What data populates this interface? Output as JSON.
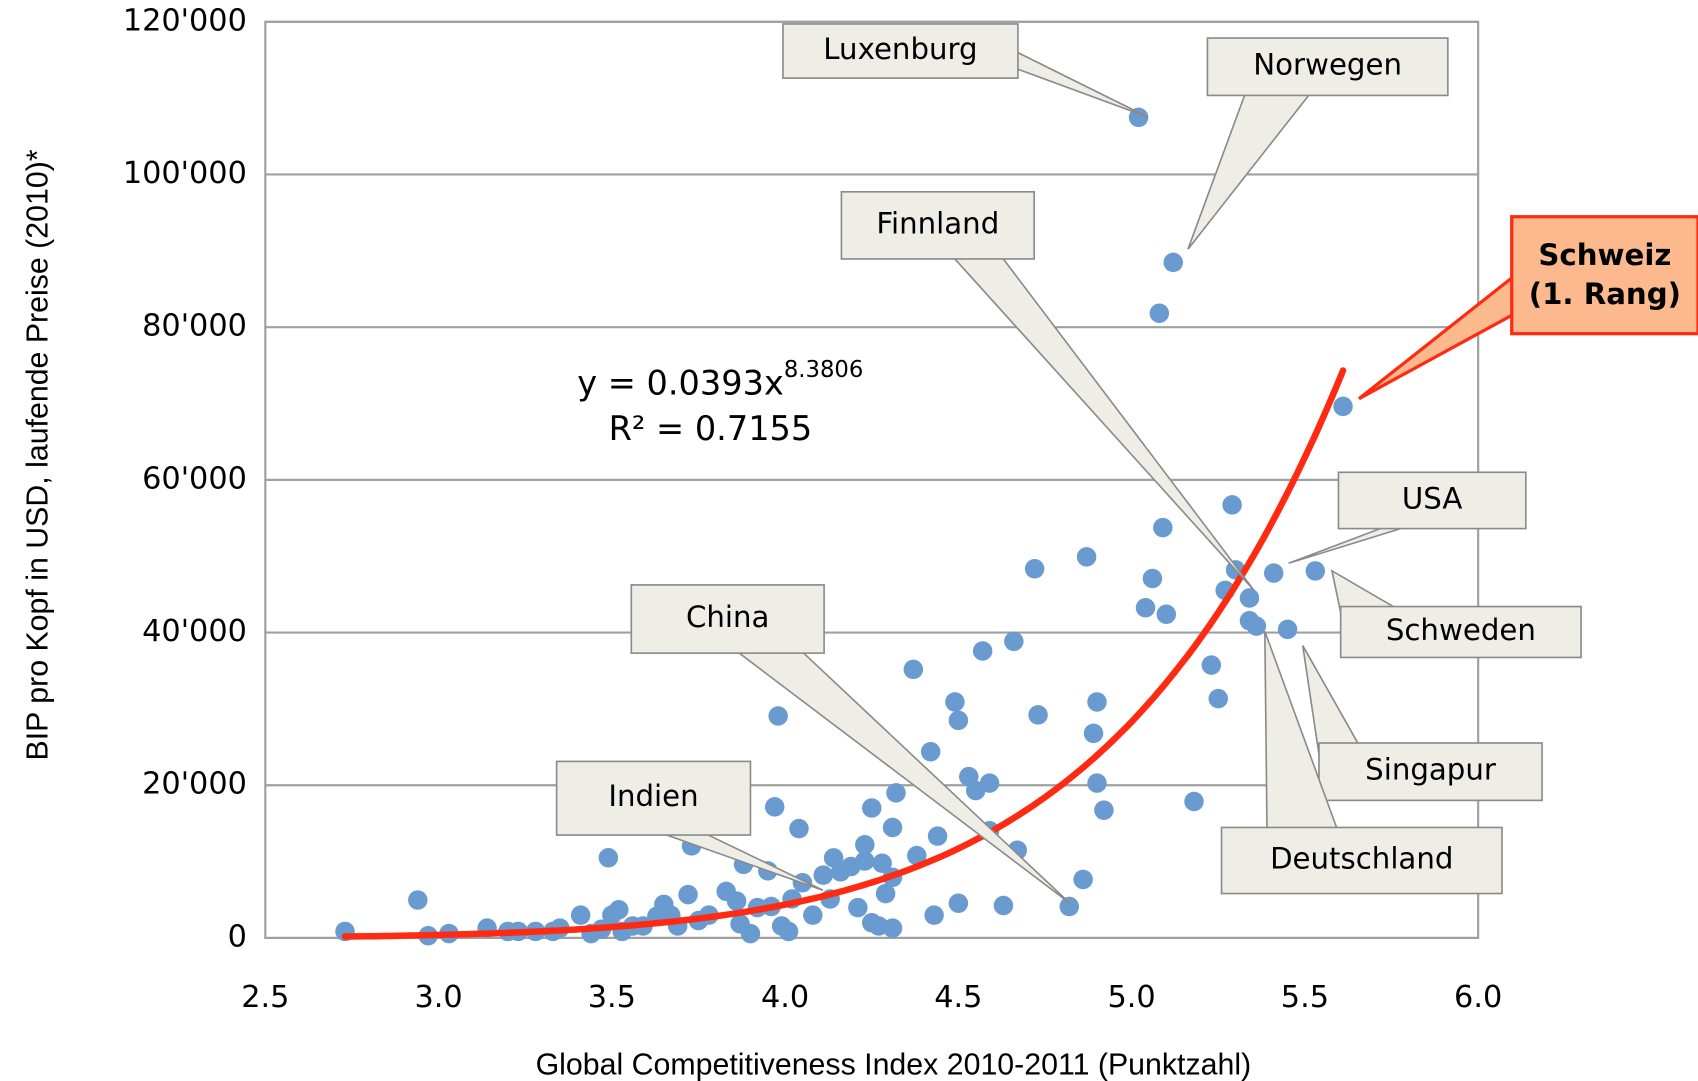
{
  "chart_data": {
    "type": "scatter",
    "x_label": "Global Competitiveness Index 2010-2011 (Punktzahl)",
    "y_label": "BIP pro Kopf in USD, laufende Preise (2010)*",
    "color": "#6a9bd0",
    "x": [
      2.73,
      2.94,
      2.97,
      3.03,
      3.14,
      3.2,
      3.23,
      3.28,
      3.33,
      3.35,
      3.41,
      3.44,
      3.47,
      3.49,
      3.5,
      3.52,
      3.53,
      3.56,
      3.59,
      3.63,
      3.65,
      3.67,
      3.69,
      3.72,
      3.73,
      3.75,
      3.78,
      3.83,
      3.86,
      3.87,
      3.88,
      3.9,
      3.92,
      3.95,
      3.96,
      3.97,
      3.98,
      3.99,
      4.01,
      4.02,
      4.04,
      4.05,
      4.08,
      4.11,
      4.13,
      4.14,
      4.16,
      4.19,
      4.21,
      4.23,
      4.23,
      4.25,
      4.25,
      4.27,
      4.28,
      4.29,
      4.31,
      4.31,
      4.31,
      4.32,
      4.37,
      4.38,
      4.42,
      4.43,
      4.44,
      4.49,
      4.5,
      4.5,
      4.53,
      4.55,
      4.57,
      4.59,
      4.59,
      4.63,
      4.66,
      4.67,
      4.73,
      4.72,
      4.82,
      4.86,
      4.87,
      4.89,
      4.9,
      4.9,
      4.92,
      5.02,
      5.04,
      5.06,
      5.08,
      5.09,
      5.1,
      5.12,
      5.18,
      5.23,
      5.25,
      5.27,
      5.29,
      5.3,
      5.34,
      5.34,
      5.36,
      5.41,
      5.45,
      5.53,
      5.61
    ],
    "values": [
      850,
      4960,
      280,
      570,
      1280,
      850,
      850,
      850,
      850,
      1280,
      2980,
      570,
      1130,
      10500,
      2980,
      3690,
      850,
      1560,
      1560,
      2840,
      4400,
      2980,
      1560,
      5670,
      12050,
      2270,
      2980,
      6100,
      4820,
      1840,
      9640,
      570,
      3970,
      8790,
      4110,
      17160,
      29070,
      1560,
      850,
      5100,
      14320,
      7230,
      2980,
      8220,
      5100,
      10490,
      8650,
      9360,
      3970,
      12200,
      10070,
      17020,
      1990,
      1560,
      9780,
      5810,
      7940,
      14460,
      1280,
      19000,
      35170,
      10780,
      24390,
      2980,
      13330,
      30910,
      28500,
      4540,
      21130,
      19290,
      37580,
      20280,
      14040,
      4250,
      38850,
      11490,
      29210,
      48350,
      4110,
      7660,
      49910,
      26800,
      30910,
      20280,
      16730,
      107480,
      43250,
      47080,
      81820,
      53740,
      42400,
      88480,
      17870,
      35730,
      31340,
      45520,
      56720,
      48210,
      44520,
      41550,
      40840,
      47790,
      40410,
      48070,
      69620
    ],
    "xlim": [
      2.5,
      6.0
    ],
    "xticks": [
      2.5,
      {
        "value": 3,
        "label": "3.0"
      },
      3.5,
      {
        "value": 4,
        "label": "4.0"
      },
      4.5,
      {
        "value": 5,
        "label": "5.0"
      },
      5.5,
      {
        "value": 6,
        "label": "6.0"
      }
    ],
    "ylim": [
      0,
      120000
    ],
    "yticks": [
      0,
      {
        "value": 20000,
        "label": "20'000"
      },
      {
        "value": 40000,
        "label": "40'000"
      },
      {
        "value": 60000,
        "label": "60'000"
      },
      {
        "value": 80000,
        "label": "80'000"
      },
      {
        "value": 100000,
        "label": "100'000"
      },
      {
        "value": 120000,
        "label": "120'000"
      }
    ],
    "grid": true,
    "trendline": {
      "coefficient": 0.0393,
      "exponent": 8.3806,
      "color": "#ff2a12",
      "equation_label": "y = 0.0393x",
      "exponent_label": "8.3806",
      "r2_label": "R² = 0.7155"
    },
    "annotations": [
      "Luxenburg",
      "Norwegen",
      "Finnland",
      "China",
      "Indien",
      "USA",
      "Schweden",
      "Singapur",
      "Deutschland",
      "Schweiz",
      "(1. Rang)"
    ]
  }
}
